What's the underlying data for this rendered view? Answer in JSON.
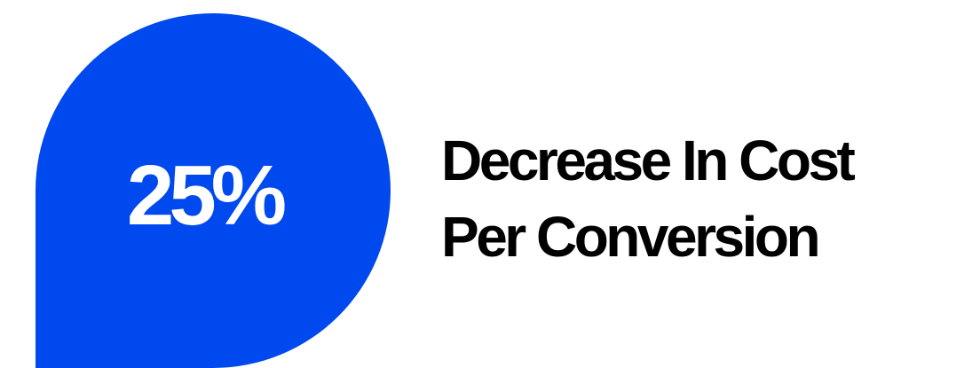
{
  "stat": {
    "value": "25%",
    "label_line_1": "Decrease In Cost",
    "label_line_2": "Per Conversion"
  },
  "colors": {
    "badge": "#0049ee",
    "value_text": "#ffffff",
    "label_text": "#000000",
    "background": "#ffffff"
  }
}
